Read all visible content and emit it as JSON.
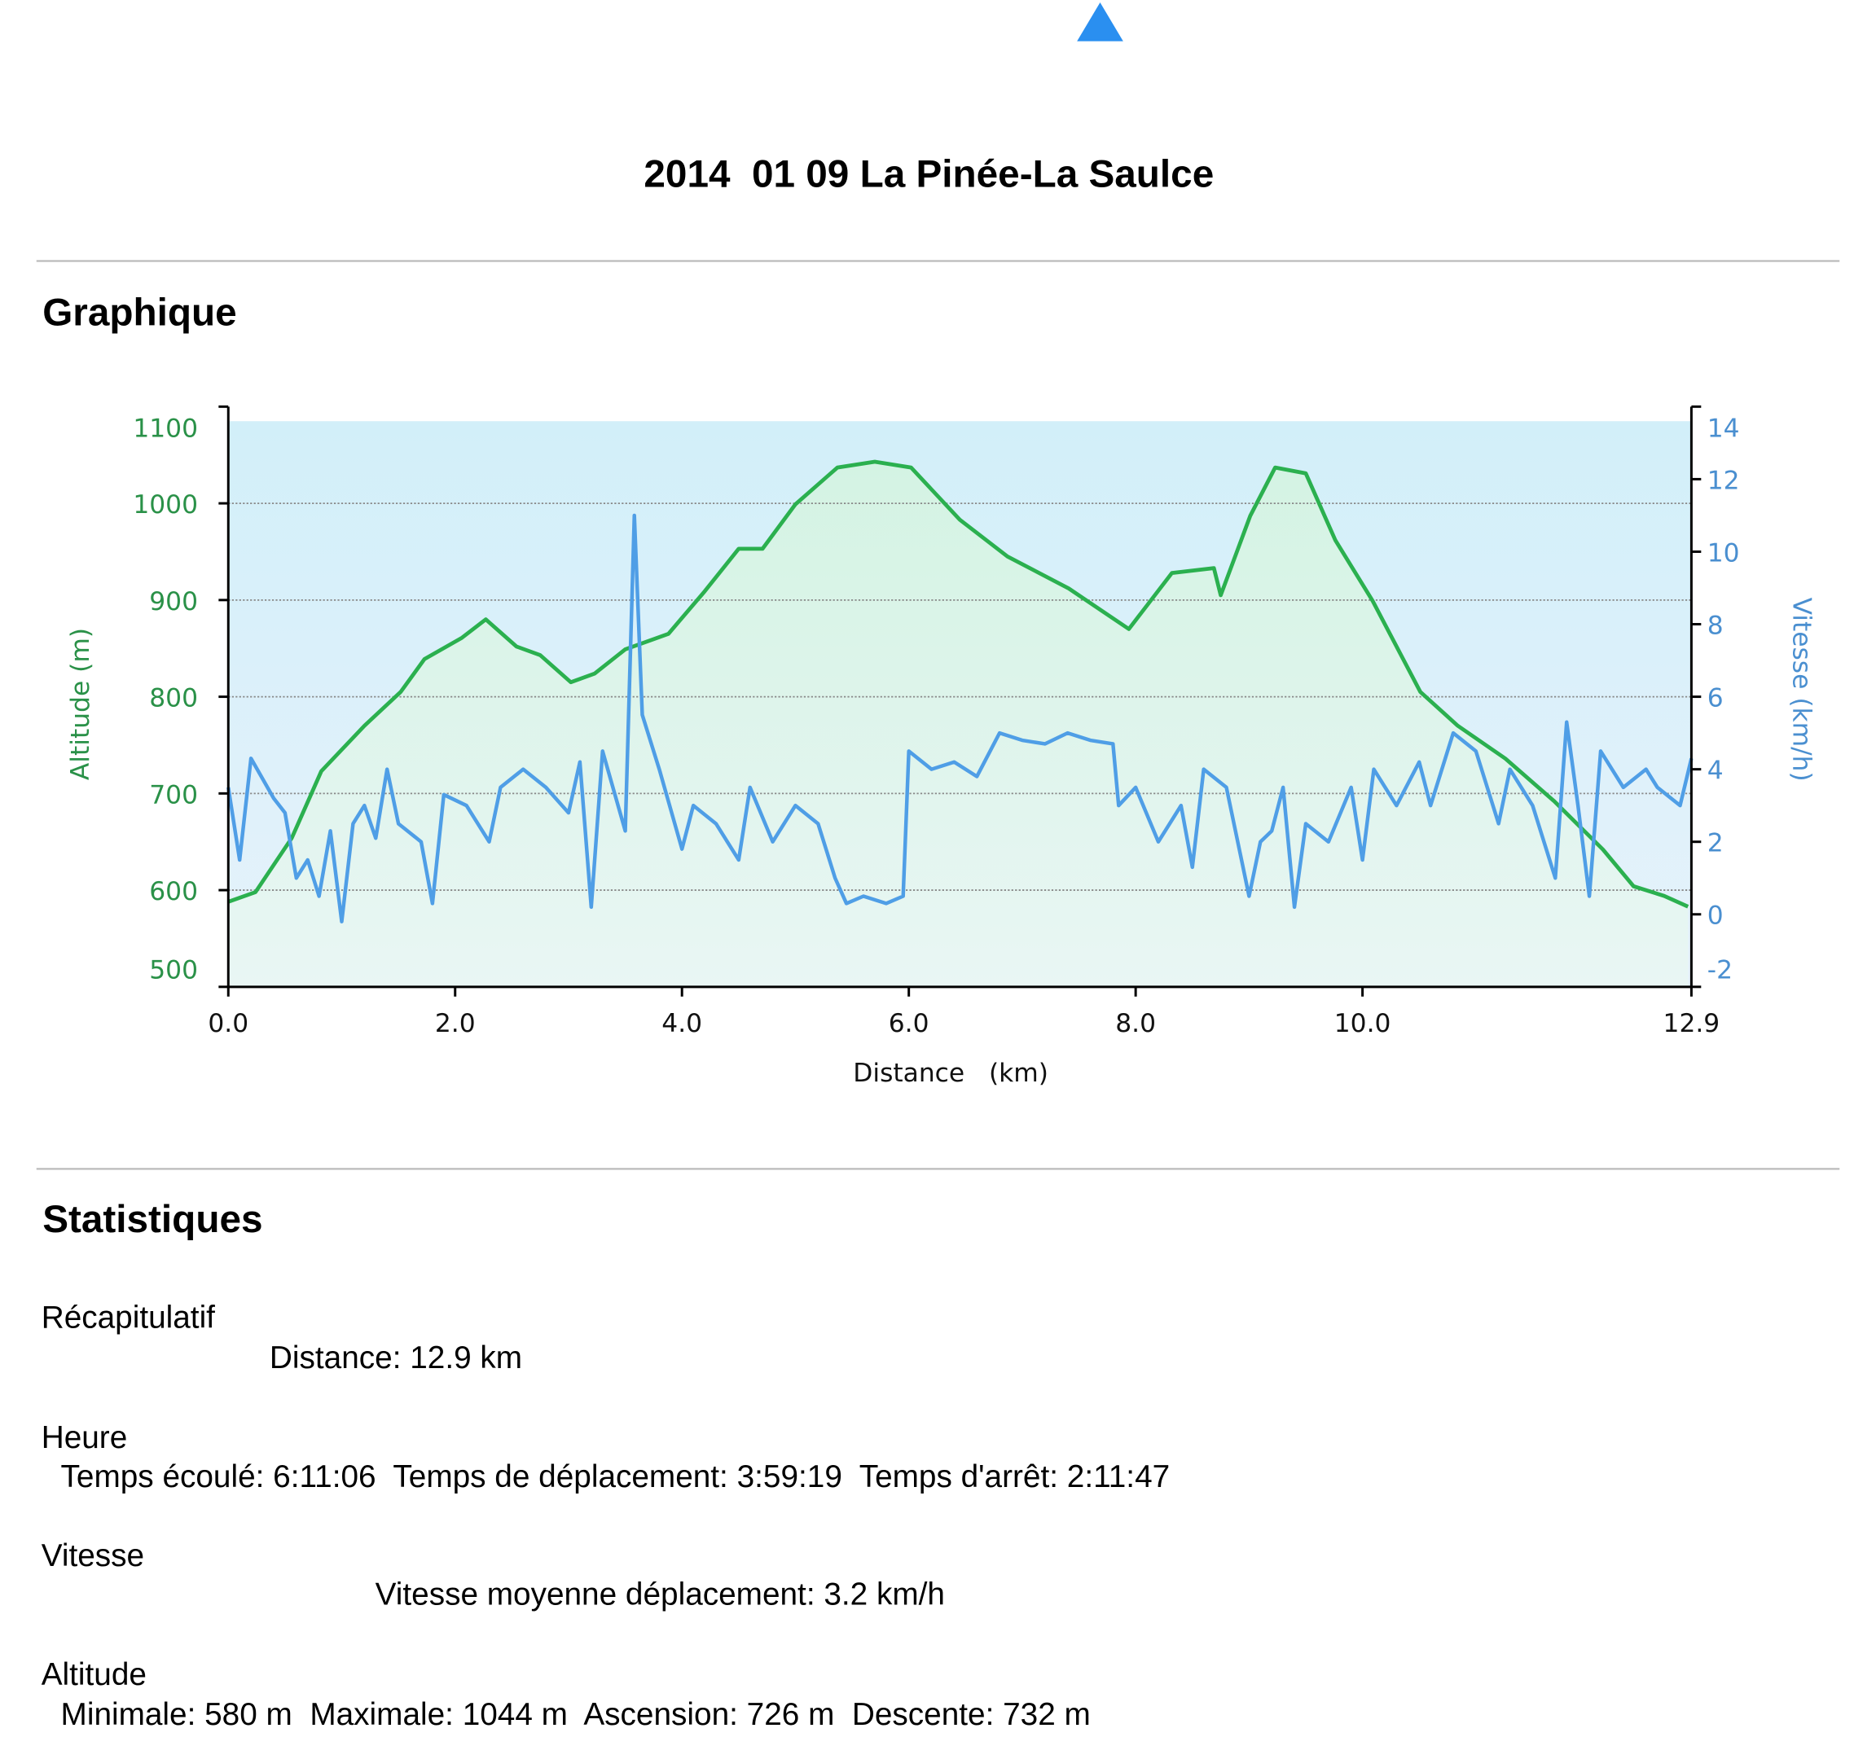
{
  "title": "2014  01 09 La Pinée-La Saulce",
  "graph_heading": "Graphique",
  "chart_data": {
    "type": "line",
    "xlabel": "Distance   (km)",
    "ylabel": "Altitude (m)",
    "y2label": "Vitesse (km/h)",
    "xlim": [
      0,
      12.9
    ],
    "xticks": [
      {
        "value": 0,
        "label": "0.0"
      },
      {
        "value": 2,
        "label": "2.0"
      },
      {
        "value": 4,
        "label": "4.0"
      },
      {
        "value": 6,
        "label": "6.0"
      },
      {
        "value": 8,
        "label": "8.0"
      },
      {
        "value": 10,
        "label": "10.0"
      },
      {
        "value": 12.9,
        "label": "12.9"
      }
    ],
    "ylim": [
      500,
      1100
    ],
    "yticks": [
      500,
      600,
      700,
      800,
      900,
      1000,
      1100
    ],
    "y2lim": [
      -2,
      14
    ],
    "y2ticks": [
      -2,
      0,
      2,
      4,
      6,
      8,
      10,
      12,
      14
    ],
    "grid": true,
    "series": [
      {
        "color": "#2bb04f",
        "axis": "y",
        "x": [
          0,
          0.24,
          0.56,
          0.82,
          1.2,
          1.52,
          1.73,
          2.06,
          2.27,
          2.54,
          2.75,
          3.02,
          3.23,
          3.5,
          3.88,
          4.2,
          4.5,
          4.71,
          5.0,
          5.37,
          5.7,
          6.02,
          6.45,
          6.87,
          7.41,
          7.94,
          8.32,
          8.69,
          8.75,
          9.01,
          9.23,
          9.5,
          9.76,
          10.09,
          10.51,
          10.84,
          11.26,
          11.69,
          12.12,
          12.39,
          12.66,
          12.87
        ],
        "values": [
          588,
          598,
          654,
          723,
          770,
          805,
          839,
          861,
          880,
          852,
          843,
          815,
          824,
          849,
          865,
          909,
          953,
          953,
          999,
          1037,
          1043,
          1037,
          983,
          945,
          912,
          870,
          928,
          933,
          905,
          987,
          1037,
          1031,
          962,
          899,
          805,
          770,
          736,
          692,
          642,
          604,
          594,
          583
        ]
      },
      {
        "color": "#4f9ee6",
        "axis": "y2",
        "x": [
          0,
          0.1,
          0.2,
          0.4,
          0.5,
          0.6,
          0.7,
          0.8,
          0.9,
          1.0,
          1.1,
          1.2,
          1.3,
          1.4,
          1.5,
          1.7,
          1.8,
          1.9,
          2.1,
          2.3,
          2.4,
          2.6,
          2.8,
          3.0,
          3.1,
          3.2,
          3.3,
          3.5,
          3.58,
          3.65,
          3.8,
          4.0,
          4.1,
          4.3,
          4.5,
          4.6,
          4.8,
          5.0,
          5.2,
          5.35,
          5.45,
          5.6,
          5.8,
          5.95,
          6.0,
          6.2,
          6.4,
          6.6,
          6.8,
          7.0,
          7.2,
          7.4,
          7.6,
          7.8,
          7.85,
          8.0,
          8.2,
          8.4,
          8.5,
          8.6,
          8.8,
          8.9,
          9.0,
          9.1,
          9.2,
          9.3,
          9.4,
          9.5,
          9.7,
          9.9,
          10.0,
          10.1,
          10.3,
          10.5,
          10.6,
          10.8,
          11.0,
          11.2,
          11.3,
          11.5,
          11.7,
          11.8,
          11.9,
          12.0,
          12.1,
          12.3,
          12.5,
          12.6,
          12.8,
          12.9
        ],
        "values": [
          3.5,
          1.5,
          4.3,
          3.2,
          2.8,
          1,
          1.5,
          0.5,
          2.3,
          -0.2,
          2.5,
          3,
          2.1,
          4,
          2.5,
          2,
          0.3,
          3.3,
          3,
          2,
          3.5,
          4,
          3.5,
          2.8,
          4.2,
          0.2,
          4.5,
          2.3,
          11,
          5.5,
          4,
          1.8,
          3,
          2.5,
          1.5,
          3.5,
          2,
          3,
          2.5,
          1,
          0.3,
          0.5,
          0.3,
          0.5,
          4.5,
          4,
          4.2,
          3.8,
          5,
          4.8,
          4.7,
          5,
          4.8,
          4.7,
          3,
          3.5,
          2,
          3,
          1.3,
          4,
          3.5,
          2,
          0.5,
          2,
          2.3,
          3.5,
          0.2,
          2.5,
          2,
          3.5,
          1.5,
          4,
          3,
          4.2,
          3,
          5,
          4.5,
          2.5,
          4,
          3,
          1,
          5.3,
          3,
          0.5,
          4.5,
          3.5,
          4,
          3.5,
          3,
          4.3
        ]
      }
    ]
  },
  "stats": {
    "heading": "Statistiques",
    "groups": [
      {
        "label": "Récapitulatif",
        "text": "Distance: 12.9 km"
      },
      {
        "label": "Heure",
        "text": "Temps écoulé: 6:11:06  Temps de déplacement: 3:59:19  Temps d'arrêt: 2:11:47"
      },
      {
        "label": "Vitesse",
        "text": "Vitesse moyenne déplacement: 3.2 km/h"
      },
      {
        "label": "Altitude",
        "text": "Minimale: 580 m  Maximale: 1044 m  Ascension: 726 m  Descente: 732 m"
      }
    ]
  }
}
